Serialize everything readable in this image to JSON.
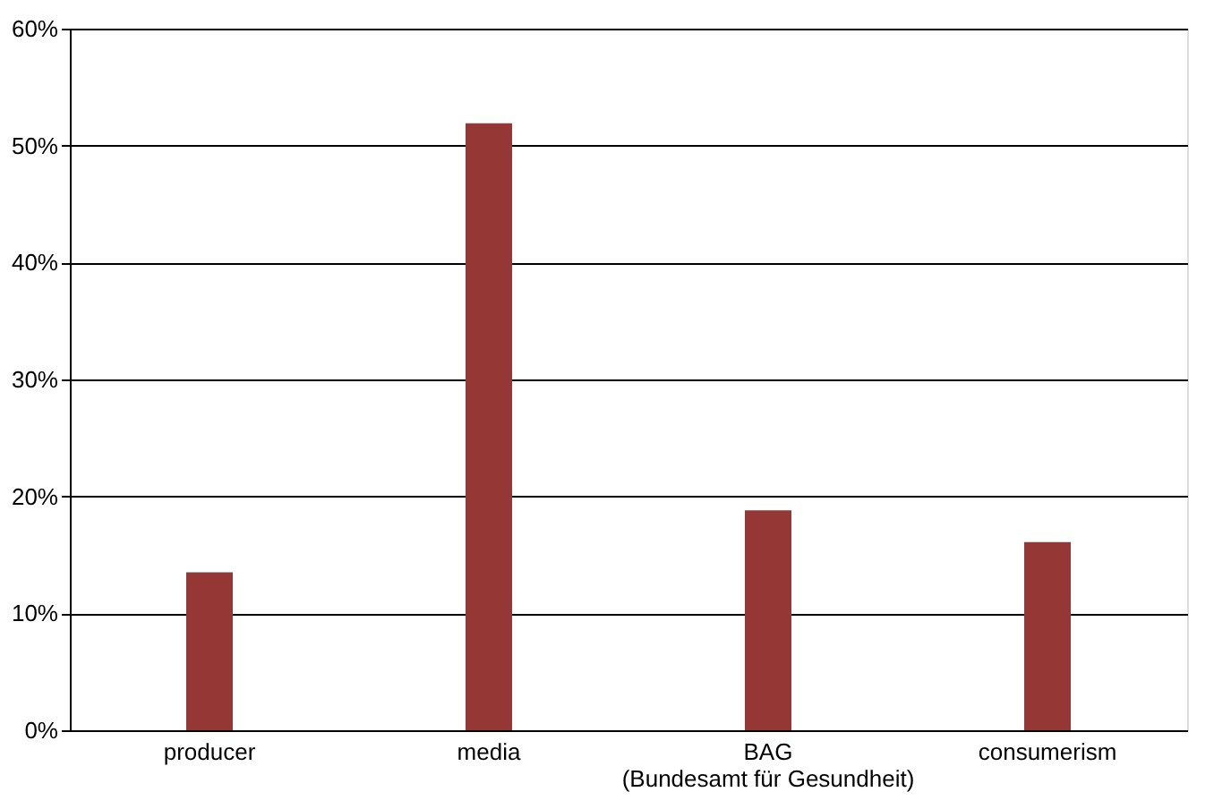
{
  "chart_data": {
    "type": "bar",
    "categories": [
      "producer",
      "media",
      "BAG\n(Bundesamt für Gesundheit)",
      "consumerism"
    ],
    "values": [
      13.5,
      51.9,
      18.8,
      16.1
    ],
    "color": "#953735",
    "ylim": [
      0,
      60
    ],
    "yticks": [
      {
        "value": 0,
        "label": "0%"
      },
      {
        "value": 10,
        "label": "10%"
      },
      {
        "value": 20,
        "label": "20%"
      },
      {
        "value": 30,
        "label": "30%"
      },
      {
        "value": 40,
        "label": "40%"
      },
      {
        "value": 50,
        "label": "50%"
      },
      {
        "value": 60,
        "label": "60%"
      }
    ],
    "grid": "y"
  }
}
